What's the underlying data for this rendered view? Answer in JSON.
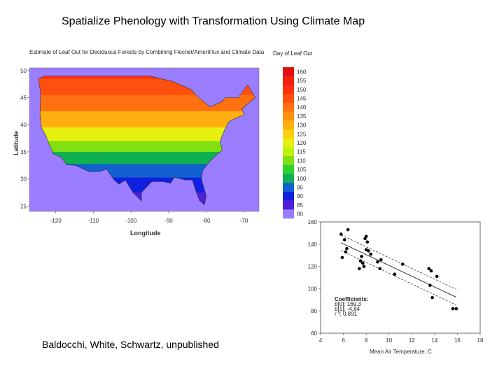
{
  "slide": {
    "title": "Spatialize Phenology with Transformation Using Climate Map",
    "credit": "Baldocchi, White, Schwartz, unpublished"
  },
  "colors": {
    "ocean": "#9b7dff",
    "regression": "#222222",
    "points": "#000000"
  },
  "chart_data": [
    {
      "type": "heatmap",
      "title": "Estimate of Leaf Out for Deciduous Forests by Combining Flocnet/AmeriFlux and Climate Data",
      "xlabel": "Longitude",
      "ylabel": "Latitude",
      "x_ticks": [
        "-120",
        "-110",
        "-100",
        "-90",
        "-80",
        "-70"
      ],
      "y_ticks": [
        "50",
        "45",
        "40",
        "35",
        "30",
        "25"
      ],
      "xlim": [
        -127,
        -66
      ],
      "ylim": [
        24,
        50.5
      ],
      "colorbar": {
        "title": "Day of Leaf Out",
        "ticks": [
          "160",
          "155",
          "150",
          "145",
          "140",
          "135",
          "130",
          "125",
          "120",
          "115",
          "110",
          "105",
          "100",
          "95",
          "90",
          "85",
          "80"
        ],
        "colors": [
          "#e01010",
          "#f02010",
          "#ff3010",
          "#ff5010",
          "#ff7010",
          "#ff9010",
          "#ffb010",
          "#ffd010",
          "#e8f010",
          "#c0f010",
          "#80e010",
          "#30d030",
          "#10b050",
          "#1060d0",
          "#1020e0",
          "#5020d8",
          "#9b7dff"
        ]
      },
      "bands": [
        {
          "lat": 50,
          "value": 150
        },
        {
          "lat": 47,
          "value": 145
        },
        {
          "lat": 44,
          "value": 138
        },
        {
          "lat": 41,
          "value": 128
        },
        {
          "lat": 38,
          "value": 118
        },
        {
          "lat": 36,
          "value": 108
        },
        {
          "lat": 34,
          "value": 100
        },
        {
          "lat": 31.5,
          "value": 93
        },
        {
          "lat": 29,
          "value": 88
        },
        {
          "lat": 26,
          "value": 84
        }
      ]
    },
    {
      "type": "scatter",
      "xlabel": "Mean Air Temperature, C",
      "ylabel": "",
      "xlim": [
        4,
        18
      ],
      "ylim": [
        60,
        160
      ],
      "x_ticks": [
        4,
        6,
        8,
        10,
        12,
        14,
        16,
        18
      ],
      "y_ticks": [
        60,
        80,
        100,
        120,
        140,
        160
      ],
      "annotation": [
        "Coefficients:",
        "b[0]: 169.3",
        "b[1]: -4.84",
        "r ²:   0.891"
      ],
      "regression": {
        "intercept": 169.3,
        "slope": -4.84
      },
      "points": [
        [
          5.8,
          149
        ],
        [
          5.9,
          128
        ],
        [
          6.1,
          144
        ],
        [
          6.2,
          133
        ],
        [
          6.3,
          136
        ],
        [
          6.4,
          153
        ],
        [
          7.4,
          118
        ],
        [
          7.5,
          125
        ],
        [
          7.6,
          129
        ],
        [
          7.7,
          123
        ],
        [
          7.8,
          120
        ],
        [
          7.9,
          145
        ],
        [
          8.0,
          147
        ],
        [
          8.0,
          135
        ],
        [
          8.1,
          142
        ],
        [
          8.2,
          134
        ],
        [
          8.4,
          131
        ],
        [
          9.0,
          124
        ],
        [
          9.2,
          118
        ],
        [
          9.3,
          126
        ],
        [
          10.5,
          113
        ],
        [
          11.2,
          122
        ],
        [
          13.5,
          118
        ],
        [
          13.7,
          116
        ],
        [
          13.6,
          103
        ],
        [
          13.8,
          92
        ],
        [
          14.2,
          111
        ],
        [
          15.6,
          82
        ],
        [
          15.9,
          82
        ]
      ]
    }
  ]
}
